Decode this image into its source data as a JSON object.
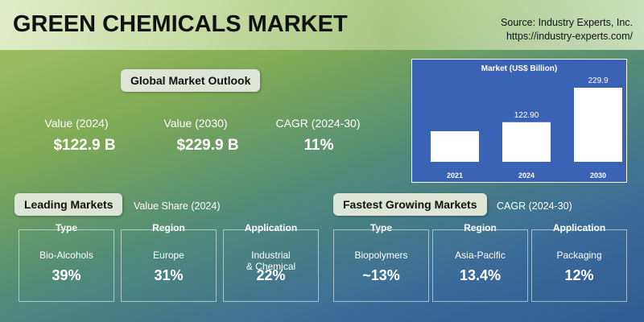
{
  "header": {
    "title": "GREEN CHEMICALS MARKET",
    "source": "Source: Industry Experts, Inc.",
    "url": "https://industry-experts.com/"
  },
  "outlook": {
    "heading": "Global Market Outlook",
    "stats": [
      {
        "label": "Value (2024)",
        "value": "$122.9 B"
      },
      {
        "label": "Value (2030)",
        "value": "$229.9 B"
      },
      {
        "label": "CAGR (2024-30)",
        "value": "11%"
      }
    ]
  },
  "chart_data": {
    "type": "bar",
    "title": "Market (US$ Billion)",
    "categories": [
      "2021",
      "2024",
      "2030"
    ],
    "values": [
      95,
      122.9,
      229.9
    ],
    "value_labels": [
      null,
      "122.90",
      "229.9"
    ],
    "color": "#ffffff"
  },
  "leading": {
    "heading": "Leading Markets",
    "subheading": "Value Share (2024)",
    "cards": [
      {
        "kind": "Type",
        "name": "Bio-Alcohols",
        "value": "39%"
      },
      {
        "kind": "Region",
        "name": "Europe",
        "value": "31%"
      },
      {
        "kind": "Application",
        "name": "Industrial\n& Chemical",
        "value": "22%"
      }
    ]
  },
  "fastest": {
    "heading": "Fastest Growing Markets",
    "subheading": "CAGR (2024-30)",
    "cards": [
      {
        "kind": "Type",
        "name": "Biopolymers",
        "value": "~13%"
      },
      {
        "kind": "Region",
        "name": "Asia-Pacific",
        "value": "13.4%"
      },
      {
        "kind": "Application",
        "name": "Packaging",
        "value": "12%"
      }
    ]
  }
}
